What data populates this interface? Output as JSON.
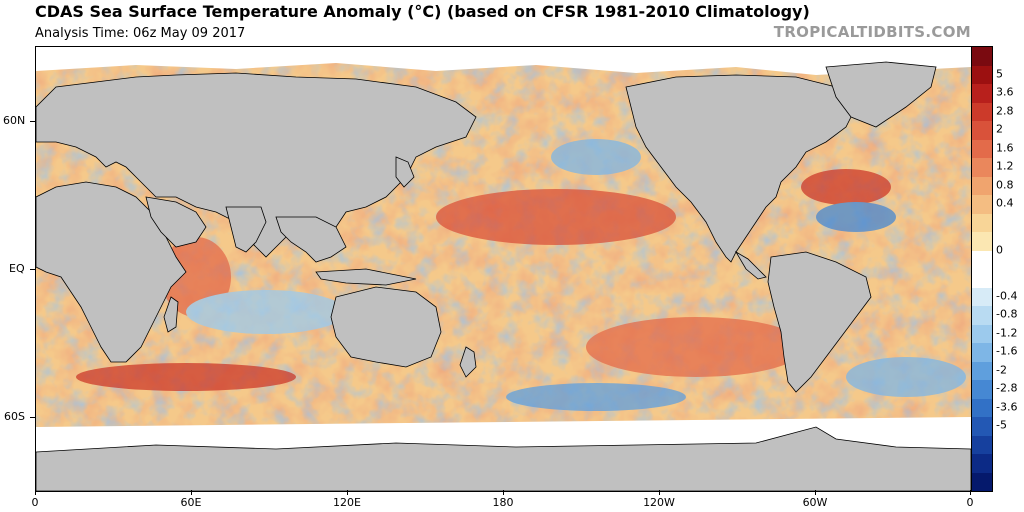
{
  "header": {
    "title": "CDAS Sea Surface Temperature Anomaly (°C) (based on CFSR 1981-2010 Climatology)",
    "analysis_time": "Analysis Time: 06z May 09 2017",
    "credit": "TROPICALTIDBITS.COM"
  },
  "map": {
    "latitude_labels": [
      "60N",
      "EQ",
      "60S"
    ],
    "longitude_labels": [
      "0",
      "60E",
      "120E",
      "180",
      "120W",
      "60W",
      "0"
    ],
    "land_color": "#c0c0c0",
    "ice_color": "#ffffff"
  },
  "colorbar": {
    "labels": [
      "5",
      "3.6",
      "2.8",
      "2",
      "1.6",
      "1.2",
      "0.8",
      "0.4",
      "0",
      "-0.4",
      "-0.8",
      "-1.2",
      "-1.6",
      "-2",
      "-2.8",
      "-3.6",
      "-5"
    ],
    "colors": [
      "#7a0a10",
      "#9c1010",
      "#b8201c",
      "#cc3a2a",
      "#d9523a",
      "#e36b4a",
      "#ea875c",
      "#f0a46e",
      "#f4bd82",
      "#f8d597",
      "#fbe7b2",
      "#ffffff",
      "#ffffff",
      "#d7ebf7",
      "#b9dbf2",
      "#9ccaed",
      "#7eb6e6",
      "#5f9fdd",
      "#4688d3",
      "#3271c6",
      "#2358b4",
      "#16409e",
      "#0c2a86",
      "#05196c"
    ]
  }
}
